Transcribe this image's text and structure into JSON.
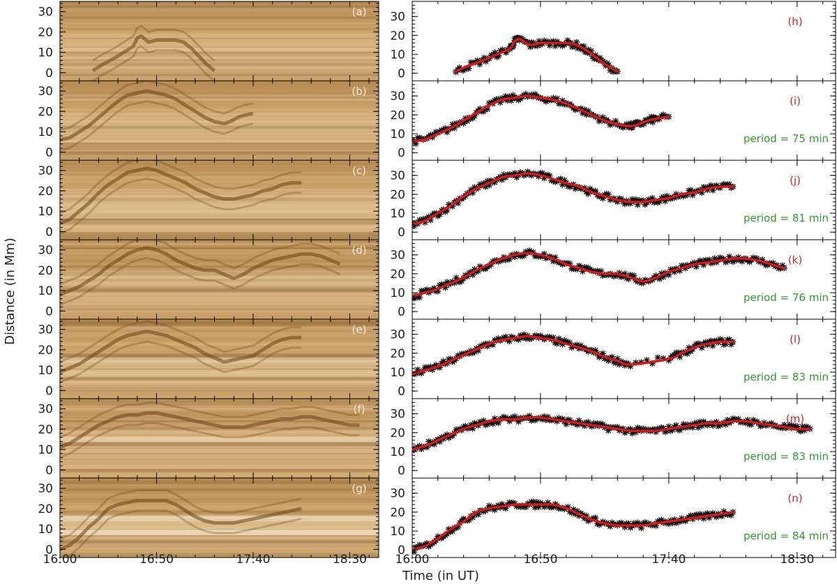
{
  "axis_titles": {
    "y": "Distance (in Mm)",
    "x": "Time (in UT)"
  },
  "colors": {
    "fit_curve": "#d81818",
    "data_marker": "#111111",
    "panel_label_left": "#f2ead8",
    "panel_label_right": "#d42020",
    "period_text": "#2e9a2e",
    "map_base": "#a8793f"
  },
  "chart_data": [
    {
      "type": "heatmap",
      "panels": [
        "(a)",
        "(b)",
        "(c)",
        "(d)",
        "(e)",
        "(f)",
        "(g)"
      ],
      "ylabel": "Distance (in Mm)",
      "xlabel": "Time (in UT)",
      "ylim": [
        -4,
        35
      ],
      "xlim": [
        0,
        165
      ],
      "yticks": [
        "0",
        "10",
        "20",
        "30"
      ],
      "xticks": [
        "16:00",
        "16:50",
        "17:40",
        "18:30"
      ],
      "xtick_minutes": [
        0,
        50,
        100,
        150
      ]
    },
    {
      "type": "scatter",
      "ylim": [
        -4,
        38
      ],
      "xlim": [
        0,
        165
      ],
      "yticks": [
        "0",
        "10",
        "20",
        "30"
      ],
      "xticks": [
        "16:00",
        "16:50",
        "17:40",
        "18:30"
      ],
      "xtick_minutes": [
        0,
        50,
        100,
        150
      ],
      "panels": [
        {
          "label": "(h)",
          "period": "",
          "points": [
            [
              17,
              1
            ],
            [
              22,
              4
            ],
            [
              28,
              7
            ],
            [
              33,
              10
            ],
            [
              38,
              13
            ],
            [
              40,
              17
            ],
            [
              42,
              18
            ],
            [
              46,
              15
            ],
            [
              50,
              16
            ],
            [
              55,
              16
            ],
            [
              60,
              16
            ],
            [
              64,
              15
            ],
            [
              68,
              12
            ],
            [
              72,
              8
            ],
            [
              76,
              4
            ],
            [
              80,
              1
            ]
          ]
        },
        {
          "label": "(i)",
          "period": "period = 75 min",
          "points": [
            [
              0,
              6
            ],
            [
              5,
              7
            ],
            [
              10,
              10
            ],
            [
              15,
              13
            ],
            [
              20,
              17
            ],
            [
              25,
              21
            ],
            [
              30,
              25
            ],
            [
              35,
              28
            ],
            [
              40,
              29
            ],
            [
              45,
              30
            ],
            [
              50,
              29
            ],
            [
              55,
              28
            ],
            [
              60,
              26
            ],
            [
              65,
              23
            ],
            [
              70,
              20
            ],
            [
              75,
              17
            ],
            [
              80,
              15
            ],
            [
              85,
              14
            ],
            [
              88,
              15
            ],
            [
              92,
              17
            ],
            [
              95,
              18
            ],
            [
              100,
              19
            ]
          ]
        },
        {
          "label": "(j)",
          "period": "period = 81 min",
          "points": [
            [
              0,
              4
            ],
            [
              5,
              6
            ],
            [
              10,
              10
            ],
            [
              15,
              14
            ],
            [
              20,
              19
            ],
            [
              25,
              23
            ],
            [
              30,
              26
            ],
            [
              35,
              29
            ],
            [
              40,
              30
            ],
            [
              45,
              31
            ],
            [
              50,
              30
            ],
            [
              55,
              28
            ],
            [
              60,
              26
            ],
            [
              65,
              24
            ],
            [
              70,
              21
            ],
            [
              75,
              19
            ],
            [
              80,
              17
            ],
            [
              85,
              16
            ],
            [
              90,
              16
            ],
            [
              95,
              17
            ],
            [
              100,
              18
            ],
            [
              105,
              20
            ],
            [
              110,
              21
            ],
            [
              115,
              23
            ],
            [
              120,
              24
            ],
            [
              125,
              24
            ]
          ]
        },
        {
          "label": "(k)",
          "period": "period = 76 min",
          "points": [
            [
              0,
              8
            ],
            [
              5,
              10
            ],
            [
              10,
              12
            ],
            [
              15,
              15
            ],
            [
              20,
              18
            ],
            [
              25,
              22
            ],
            [
              30,
              25
            ],
            [
              35,
              28
            ],
            [
              40,
              30
            ],
            [
              45,
              31
            ],
            [
              50,
              30
            ],
            [
              55,
              28
            ],
            [
              60,
              25
            ],
            [
              65,
              23
            ],
            [
              70,
              21
            ],
            [
              75,
              20
            ],
            [
              80,
              20
            ],
            [
              85,
              18
            ],
            [
              90,
              16
            ],
            [
              95,
              18
            ],
            [
              100,
              21
            ],
            [
              105,
              23
            ],
            [
              110,
              25
            ],
            [
              115,
              26
            ],
            [
              120,
              27
            ],
            [
              125,
              28
            ],
            [
              130,
              28
            ],
            [
              135,
              27
            ],
            [
              140,
              25
            ],
            [
              145,
              23
            ]
          ]
        },
        {
          "label": "(l)",
          "period": "period = 83 min",
          "points": [
            [
              0,
              9
            ],
            [
              5,
              11
            ],
            [
              10,
              13
            ],
            [
              15,
              16
            ],
            [
              20,
              19
            ],
            [
              25,
              22
            ],
            [
              30,
              25
            ],
            [
              35,
              27
            ],
            [
              40,
              28
            ],
            [
              45,
              29
            ],
            [
              50,
              28
            ],
            [
              55,
              27
            ],
            [
              60,
              25
            ],
            [
              65,
              23
            ],
            [
              70,
              21
            ],
            [
              75,
              18
            ],
            [
              80,
              16
            ],
            [
              85,
              14
            ],
            [
              100,
              17
            ],
            [
              105,
              20
            ],
            [
              110,
              23
            ],
            [
              115,
              25
            ],
            [
              120,
              26
            ],
            [
              125,
              26
            ]
          ]
        },
        {
          "label": "(m)",
          "period": "period = 83 min",
          "points": [
            [
              0,
              11
            ],
            [
              5,
              13
            ],
            [
              10,
              16
            ],
            [
              15,
              19
            ],
            [
              20,
              22
            ],
            [
              25,
              24
            ],
            [
              30,
              26
            ],
            [
              35,
              27
            ],
            [
              40,
              27
            ],
            [
              45,
              28
            ],
            [
              50,
              28
            ],
            [
              55,
              27
            ],
            [
              60,
              26
            ],
            [
              65,
              25
            ],
            [
              70,
              24
            ],
            [
              75,
              23
            ],
            [
              80,
              22
            ],
            [
              85,
              21
            ],
            [
              90,
              21
            ],
            [
              95,
              21
            ],
            [
              100,
              22
            ],
            [
              105,
              23
            ],
            [
              110,
              24
            ],
            [
              115,
              25
            ],
            [
              120,
              25
            ],
            [
              125,
              26
            ],
            [
              130,
              26
            ],
            [
              135,
              25
            ],
            [
              140,
              24
            ],
            [
              145,
              23
            ],
            [
              150,
              22
            ],
            [
              155,
              22
            ]
          ]
        },
        {
          "label": "(n)",
          "period": "period = 84 min",
          "points": [
            [
              0,
              0
            ],
            [
              5,
              2
            ],
            [
              10,
              6
            ],
            [
              15,
              11
            ],
            [
              20,
              15
            ],
            [
              25,
              20
            ],
            [
              30,
              22
            ],
            [
              35,
              23
            ],
            [
              40,
              24
            ],
            [
              45,
              24
            ],
            [
              50,
              24
            ],
            [
              55,
              24
            ],
            [
              60,
              22
            ],
            [
              65,
              19
            ],
            [
              70,
              16
            ],
            [
              75,
              14
            ],
            [
              80,
              13
            ],
            [
              85,
              13
            ],
            [
              90,
              13
            ],
            [
              95,
              14
            ],
            [
              100,
              15
            ],
            [
              105,
              16
            ],
            [
              110,
              17
            ],
            [
              115,
              18
            ],
            [
              120,
              19
            ],
            [
              125,
              20
            ]
          ]
        }
      ]
    }
  ]
}
